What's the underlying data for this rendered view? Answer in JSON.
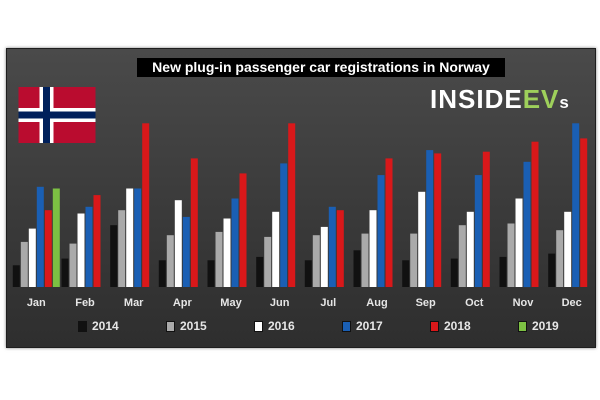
{
  "title": "New plug-in passenger car registrations in Norway",
  "brand": {
    "main": "INSIDE",
    "accent": "EV",
    "suffix": "s",
    "accent_color": "#9ed05b"
  },
  "flag": {
    "red": "#ba0c2f",
    "white": "#ffffff",
    "blue": "#00205b"
  },
  "background_color": "#3d3d3d",
  "chart_data": {
    "type": "bar",
    "title": "New plug-in passenger car registrations in Norway",
    "xlabel": "",
    "ylabel": "",
    "grid": false,
    "legend_position": "bottom",
    "categories": [
      "Jan",
      "Feb",
      "Mar",
      "Apr",
      "May",
      "Jun",
      "Jul",
      "Aug",
      "Sep",
      "Oct",
      "Nov",
      "Dec"
    ],
    "ylim": [
      0,
      100
    ],
    "series": [
      {
        "name": "2014",
        "color": "#111111",
        "values": [
          13,
          17,
          37,
          16,
          16,
          18,
          16,
          22,
          16,
          17,
          18,
          20
        ]
      },
      {
        "name": "2015",
        "color": "#aaaaaa",
        "values": [
          27,
          26,
          46,
          31,
          33,
          30,
          31,
          32,
          32,
          37,
          38,
          34
        ]
      },
      {
        "name": "2016",
        "color": "#ffffff",
        "values": [
          35,
          44,
          59,
          52,
          41,
          45,
          36,
          46,
          57,
          45,
          53,
          45
        ]
      },
      {
        "name": "2017",
        "color": "#1a5fb4",
        "values": [
          60,
          48,
          59,
          42,
          53,
          74,
          48,
          67,
          82,
          67,
          75,
          98
        ]
      },
      {
        "name": "2018",
        "color": "#d9181a",
        "values": [
          46,
          55,
          98,
          77,
          68,
          98,
          46,
          77,
          80,
          81,
          87,
          89
        ]
      },
      {
        "name": "2019",
        "color": "#7cc043",
        "values": [
          59,
          null,
          null,
          null,
          null,
          null,
          null,
          null,
          null,
          null,
          null,
          null
        ]
      }
    ]
  }
}
